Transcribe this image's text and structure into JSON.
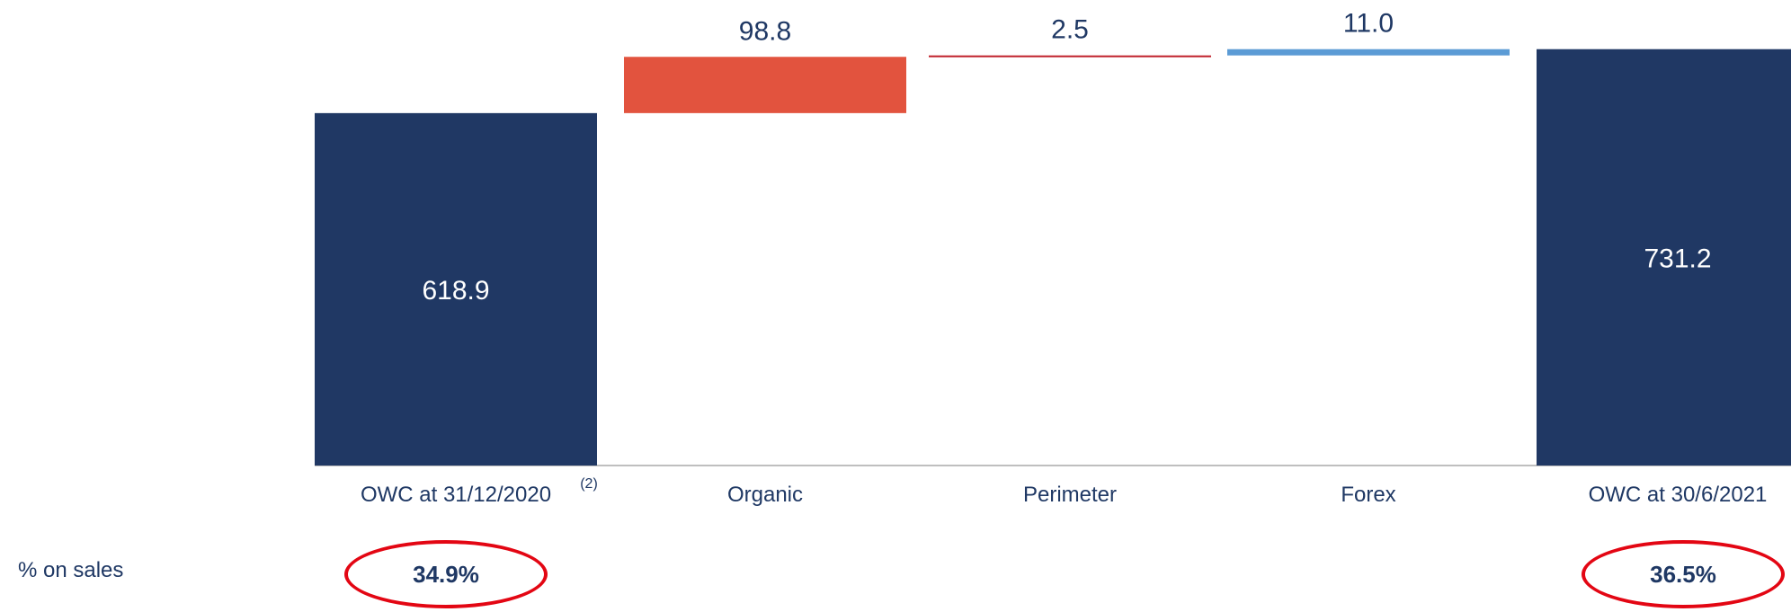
{
  "colors": {
    "total": "#203864",
    "organic": "#e2533e",
    "perimeter": "#c0202a",
    "forex": "#5b9bd5",
    "axis": "#bfbfbf",
    "highlight": "#e30613"
  },
  "chart_data": {
    "type": "bar",
    "subtype": "waterfall",
    "categories": [
      "OWC at 31/12/2020",
      "Organic",
      "Perimeter",
      "Forex",
      "OWC at 30/6/2021"
    ],
    "values": [
      618.9,
      98.8,
      2.5,
      11.0,
      731.2
    ],
    "value_labels": [
      "618.9",
      "98.8",
      "2.5",
      "11.0",
      "731.2"
    ],
    "kinds": [
      "total",
      "delta",
      "delta",
      "delta",
      "total"
    ],
    "footnote_marker": "(2)",
    "row_label": "% on  sales",
    "percent_on_sales": [
      "34.9%",
      "36.5%"
    ],
    "grid": false
  }
}
